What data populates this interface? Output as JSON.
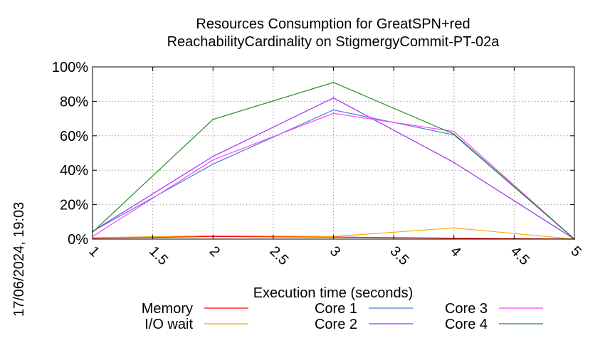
{
  "chart_data": {
    "type": "line",
    "title_line1": "Resources Consumption for GreatSPN+red",
    "title_line2": "ReachabilityCardinality on StigmergyCommit-PT-02a",
    "xlabel": "Execution time (seconds)",
    "ylabel": "",
    "timestamp": "17/06/2024, 19:03",
    "xlim": [
      1,
      5
    ],
    "ylim": [
      0,
      100
    ],
    "x_ticks": [
      "1",
      "1.5",
      "2",
      "2.5",
      "3",
      "3.5",
      "4",
      "4.5",
      "5"
    ],
    "x_tick_values": [
      1,
      1.5,
      2,
      2.5,
      3,
      3.5,
      4,
      4.5,
      5
    ],
    "y_ticks": [
      "0%",
      "20%",
      "40%",
      "60%",
      "80%",
      "100%"
    ],
    "y_tick_values": [
      0,
      20,
      40,
      60,
      80,
      100
    ],
    "grid": true,
    "legend_position": "bottom",
    "x": [
      1,
      2,
      3,
      4,
      5
    ],
    "series": [
      {
        "name": "Memory",
        "color": "#ff0000",
        "values": [
          0.5,
          1.5,
          1.2,
          0.5,
          0
        ]
      },
      {
        "name": "I/O wait",
        "color": "#ffa500",
        "values": [
          0.8,
          2.0,
          1.5,
          6.5,
          0
        ]
      },
      {
        "name": "Core 1",
        "color": "#4a7fd4",
        "values": [
          4.5,
          43.5,
          75,
          60.5,
          0
        ]
      },
      {
        "name": "Core 2",
        "color": "#9933ee",
        "values": [
          4.5,
          48,
          82,
          44.5,
          0
        ]
      },
      {
        "name": "Core 3",
        "color": "#ff44ff",
        "values": [
          1.5,
          46,
          73,
          62.5,
          0
        ]
      },
      {
        "name": "Core 4",
        "color": "#228b22",
        "values": [
          4.0,
          69.5,
          91,
          61,
          0
        ]
      }
    ]
  }
}
